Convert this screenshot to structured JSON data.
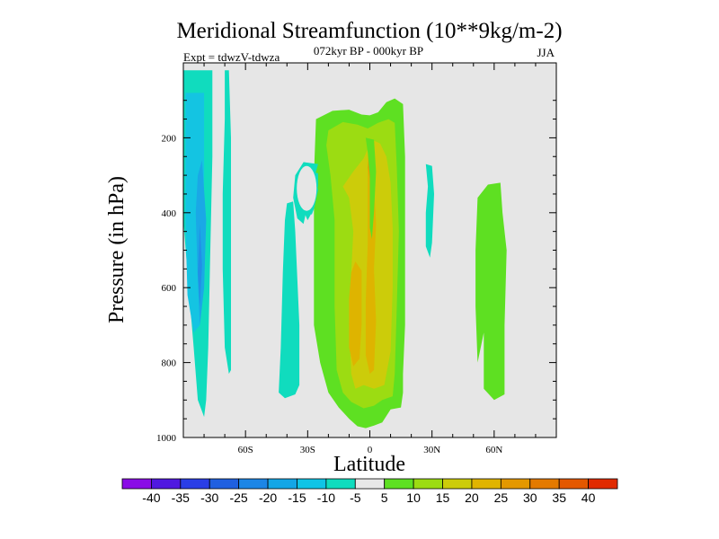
{
  "chart_data": {
    "type": "contour",
    "title": "Meridional Streamfunction (10**9kg/m-2)",
    "subtitle": "072kyr BP - 000kyr BP",
    "season": "JJA",
    "experiment": "Expt = tdwzV-tdwza",
    "xlabel": "Latitude",
    "ylabel": "Pressure (in hPa)",
    "xlim": [
      -90,
      90
    ],
    "ylim": [
      1000,
      0
    ],
    "xticks": [
      {
        "value": -60,
        "label": "60S"
      },
      {
        "value": -30,
        "label": "30S"
      },
      {
        "value": 0,
        "label": "0"
      },
      {
        "value": 30,
        "label": "30N"
      },
      {
        "value": 60,
        "label": "60N"
      }
    ],
    "yticks": [
      {
        "value": 200,
        "label": "200"
      },
      {
        "value": 400,
        "label": "400"
      },
      {
        "value": 600,
        "label": "600"
      },
      {
        "value": 800,
        "label": "800"
      },
      {
        "value": 1000,
        "label": "1000"
      }
    ],
    "background_color": "#e6e6e6",
    "colorbar": {
      "colors": [
        "#8a0ce6",
        "#5018e0",
        "#2a3ee6",
        "#2060e0",
        "#1c86e6",
        "#14a6e6",
        "#10c4e6",
        "#10dcbe",
        "#e8e8e8",
        "#5ee022",
        "#9cdc12",
        "#cccc0a",
        "#e0b400",
        "#e49800",
        "#e47a00",
        "#e45800",
        "#e02a00"
      ],
      "labels": [
        "-40",
        "-35",
        "-30",
        "-25",
        "-20",
        "-15",
        "-10",
        "-5",
        "5",
        "10",
        "15",
        "20",
        "25",
        "30",
        "35",
        "40"
      ]
    },
    "regions": [
      {
        "level": "-5",
        "color": "#10dcbe",
        "lat_pres": [
          [
            -90,
            20
          ],
          [
            -76,
            20
          ],
          [
            -76,
            250
          ],
          [
            -77,
            500
          ],
          [
            -78,
            760
          ],
          [
            -79,
            900
          ],
          [
            -80,
            945
          ],
          [
            -83,
            900
          ],
          [
            -85,
            760
          ],
          [
            -88,
            560
          ],
          [
            -90,
            420
          ]
        ]
      },
      {
        "level": "-10",
        "color": "#14c4e2",
        "lat_pres": [
          [
            -89,
            80
          ],
          [
            -80,
            80
          ],
          [
            -80,
            300
          ],
          [
            -81,
            520
          ],
          [
            -82,
            700
          ],
          [
            -85,
            720
          ],
          [
            -88,
            620
          ],
          [
            -89,
            420
          ],
          [
            -89,
            250
          ]
        ]
      },
      {
        "level": "-15",
        "color": "#1aa8e6",
        "lat_pres": [
          [
            -81,
            260
          ],
          [
            -79,
            420
          ],
          [
            -80,
            600
          ],
          [
            -82,
            700
          ],
          [
            -83,
            580
          ],
          [
            -84,
            400
          ],
          [
            -83,
            300
          ]
        ]
      },
      {
        "level": "-20",
        "color": "#2090e6",
        "lat_pres": [
          [
            -82,
            430
          ],
          [
            -81,
            540
          ],
          [
            -82,
            650
          ],
          [
            -83,
            560
          ]
        ]
      },
      {
        "level": "-5",
        "color": "#10dcbe",
        "lat_pres": [
          [
            -70,
            20
          ],
          [
            -68,
            20
          ],
          [
            -67,
            200
          ],
          [
            -67,
            460
          ],
          [
            -67,
            820
          ],
          [
            -68,
            830
          ],
          [
            -70,
            760
          ],
          [
            -71,
            550
          ],
          [
            -71,
            350
          ],
          [
            -70,
            150
          ]
        ]
      },
      {
        "level": "-5",
        "color": "#10dcbe",
        "lat_pres": [
          [
            -40,
            375
          ],
          [
            -37,
            370
          ],
          [
            -36,
            450
          ],
          [
            -34,
            700
          ],
          [
            -34,
            860
          ],
          [
            -36,
            885
          ],
          [
            -41,
            895
          ],
          [
            -44,
            880
          ],
          [
            -43,
            760
          ],
          [
            -42,
            560
          ],
          [
            -41,
            420
          ]
        ]
      },
      {
        "level": "5",
        "color": "#5ee022",
        "lat_pres": [
          [
            -26,
            150
          ],
          [
            -18,
            128
          ],
          [
            -10,
            125
          ],
          [
            -4,
            138
          ],
          [
            0,
            140
          ],
          [
            4,
            132
          ],
          [
            8,
            105
          ],
          [
            12,
            95
          ],
          [
            16,
            110
          ],
          [
            17,
            250
          ],
          [
            17,
            450
          ],
          [
            17,
            700
          ],
          [
            16,
            830
          ],
          [
            16,
            880
          ],
          [
            15,
            920
          ],
          [
            10,
            925
          ],
          [
            6,
            960
          ],
          [
            2,
            968
          ],
          [
            -2,
            975
          ],
          [
            -6,
            970
          ],
          [
            -10,
            950
          ],
          [
            -15,
            920
          ],
          [
            -20,
            880
          ],
          [
            -24,
            800
          ],
          [
            -27,
            700
          ],
          [
            -27,
            500
          ],
          [
            -27,
            300
          ]
        ]
      },
      {
        "level": "10",
        "color": "#9cdc12",
        "lat_pres": [
          [
            -20,
            180
          ],
          [
            -13,
            158
          ],
          [
            -6,
            165
          ],
          [
            -1,
            175
          ],
          [
            4,
            160
          ],
          [
            9,
            150
          ],
          [
            12,
            160
          ],
          [
            13,
            280
          ],
          [
            14,
            450
          ],
          [
            13,
            650
          ],
          [
            12,
            830
          ],
          [
            11,
            890
          ],
          [
            6,
            900
          ],
          [
            2,
            915
          ],
          [
            -3,
            922
          ],
          [
            -9,
            905
          ],
          [
            -13,
            880
          ],
          [
            -16,
            820
          ],
          [
            -17,
            650
          ],
          [
            -17,
            420
          ],
          [
            -19,
            300
          ],
          [
            -21,
            220
          ]
        ]
      },
      {
        "level": "15",
        "color": "#cccc0a",
        "lat_pres": [
          [
            -13,
            330
          ],
          [
            -10,
            360
          ],
          [
            -8,
            450
          ],
          [
            -9,
            560
          ],
          [
            -10,
            700
          ],
          [
            -9,
            830
          ],
          [
            -7,
            870
          ],
          [
            -3,
            860
          ],
          [
            2,
            870
          ],
          [
            7,
            860
          ],
          [
            10,
            770
          ],
          [
            11,
            600
          ],
          [
            11,
            440
          ],
          [
            10,
            320
          ],
          [
            8,
            250
          ],
          [
            5,
            215
          ],
          [
            1,
            205
          ],
          [
            -3,
            255
          ],
          [
            -8,
            290
          ]
        ]
      },
      {
        "level": "20",
        "color": "#deb400",
        "lat_pres": [
          [
            -7,
            530
          ],
          [
            -4,
            555
          ],
          [
            -4,
            700
          ],
          [
            -5,
            790
          ],
          [
            -8,
            810
          ],
          [
            -10,
            760
          ],
          [
            -10,
            630
          ],
          [
            -9,
            560
          ]
        ]
      },
      {
        "level": "20",
        "color": "#deb400",
        "lat_pres": [
          [
            0,
            220
          ],
          [
            2,
            222
          ],
          [
            2,
            320
          ],
          [
            3,
            430
          ],
          [
            2,
            550
          ],
          [
            3,
            690
          ],
          [
            2,
            820
          ],
          [
            0,
            830
          ],
          [
            -2,
            780
          ],
          [
            -2,
            640
          ],
          [
            -1,
            480
          ],
          [
            -1,
            350
          ],
          [
            -1,
            260
          ]
        ]
      },
      {
        "level": "25",
        "color": "#e2a000",
        "lat_pres": [
          [
            0,
            230
          ],
          [
            1,
            235
          ],
          [
            1,
            300
          ],
          [
            0,
            310
          ],
          [
            -1,
            280
          ]
        ]
      },
      {
        "level": "-5",
        "color": "#10dcbe",
        "lat_pres": [
          [
            -32,
            265
          ],
          [
            -25,
            270
          ],
          [
            -28,
            330
          ],
          [
            -32,
            430
          ],
          [
            -35,
            415
          ],
          [
            -37,
            360
          ],
          [
            -36,
            300
          ]
        ]
      },
      {
        "level": "-5",
        "color": "#10dcbe",
        "lat_pres": [
          [
            -29,
            290
          ],
          [
            -25,
            295
          ],
          [
            -27,
            330
          ],
          [
            -28,
            400
          ],
          [
            -30,
            420
          ],
          [
            -32,
            395
          ],
          [
            -33,
            340
          ],
          [
            -32,
            300
          ]
        ]
      },
      {
        "level": "-5",
        "color": "#10dcbe",
        "lat_pres": [
          [
            -29,
            290
          ],
          [
            -25,
            295
          ],
          [
            -25,
            330
          ],
          [
            -29,
            345
          ],
          [
            -32,
            380
          ],
          [
            -33,
            340
          ]
        ]
      },
      {
        "level": "-5",
        "color": "#10dcbe",
        "lat_pres": [
          [
            -32,
            265
          ],
          [
            -27,
            270
          ],
          [
            -26,
            300
          ],
          [
            -25,
            340
          ],
          [
            -27,
            390
          ],
          [
            -28,
            405
          ],
          [
            -31,
            395
          ],
          [
            -33,
            360
          ],
          [
            -34,
            315
          ]
        ]
      },
      {
        "level": "-5",
        "color": "#10dcbe",
        "lat_pres": [
          [
            27,
            270
          ],
          [
            30,
            275
          ],
          [
            31,
            350
          ],
          [
            30,
            480
          ],
          [
            29,
            520
          ],
          [
            27,
            490
          ],
          [
            27,
            400
          ],
          [
            28,
            330
          ]
        ]
      },
      {
        "level": "5",
        "color": "#5ee022",
        "lat_pres": [
          [
            52,
            360
          ],
          [
            57,
            325
          ],
          [
            63,
            320
          ],
          [
            64,
            400
          ],
          [
            66,
            500
          ],
          [
            65,
            700
          ],
          [
            65,
            885
          ],
          [
            60,
            900
          ],
          [
            55,
            870
          ],
          [
            55,
            720
          ],
          [
            52,
            800
          ],
          [
            51,
            650
          ],
          [
            51,
            500
          ]
        ]
      },
      {
        "level": "5",
        "color": "#5ee022",
        "lat_pres": [
          [
            -2,
            200
          ],
          [
            2,
            205
          ],
          [
            3,
            290
          ],
          [
            2,
            400
          ],
          [
            1,
            470
          ],
          [
            0,
            440
          ],
          [
            0,
            300
          ],
          [
            -1,
            240
          ]
        ]
      }
    ]
  }
}
